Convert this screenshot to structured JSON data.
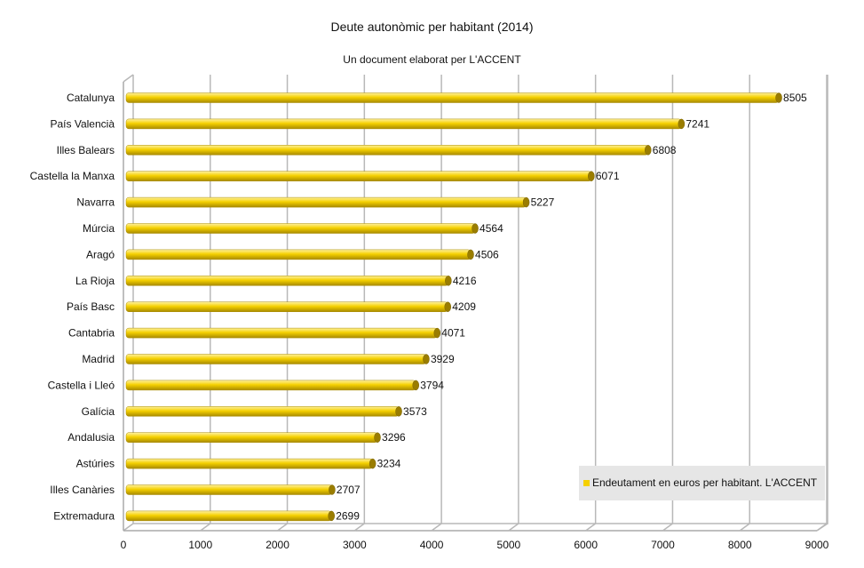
{
  "chart_data": {
    "type": "bar",
    "orientation": "horizontal",
    "title": "Deute autonòmic per habitant (2014)",
    "subtitle": "Un document elaborat per L'ACCENT",
    "categories": [
      "Catalunya",
      "País Valencià",
      "Illes Balears",
      "Castella la Manxa",
      "Navarra",
      "Múrcia",
      "Aragó",
      "La Rioja",
      "País Basc",
      "Cantabria",
      "Madrid",
      "Castella i Lleó",
      "Galícia",
      "Andalusia",
      "Astúries",
      "Illes Canàries",
      "Extremadura"
    ],
    "series": [
      {
        "name": "Endeutament en euros per habitant. L'ACCENT",
        "values": [
          8505,
          7241,
          6808,
          6071,
          5227,
          4564,
          4506,
          4216,
          4209,
          4071,
          3929,
          3794,
          3573,
          3296,
          3234,
          2707,
          2699
        ],
        "color": "#f5d000"
      }
    ],
    "x_ticks": [
      "0",
      "1000",
      "2000",
      "3000",
      "4000",
      "5000",
      "6000",
      "7000",
      "8000",
      "9000"
    ],
    "xlim": [
      0,
      9000
    ],
    "grid": true,
    "legend_position": "bottom-right",
    "colors": {
      "bar_top": "#fff2a0",
      "bar_mid": "#f5d000",
      "bar_bottom": "#a88a00",
      "bar_cap": "#9a7d00",
      "grid": "#b8b8b8",
      "axis": "#aaaaaa",
      "legend_bg": "#e6e6e6"
    }
  }
}
